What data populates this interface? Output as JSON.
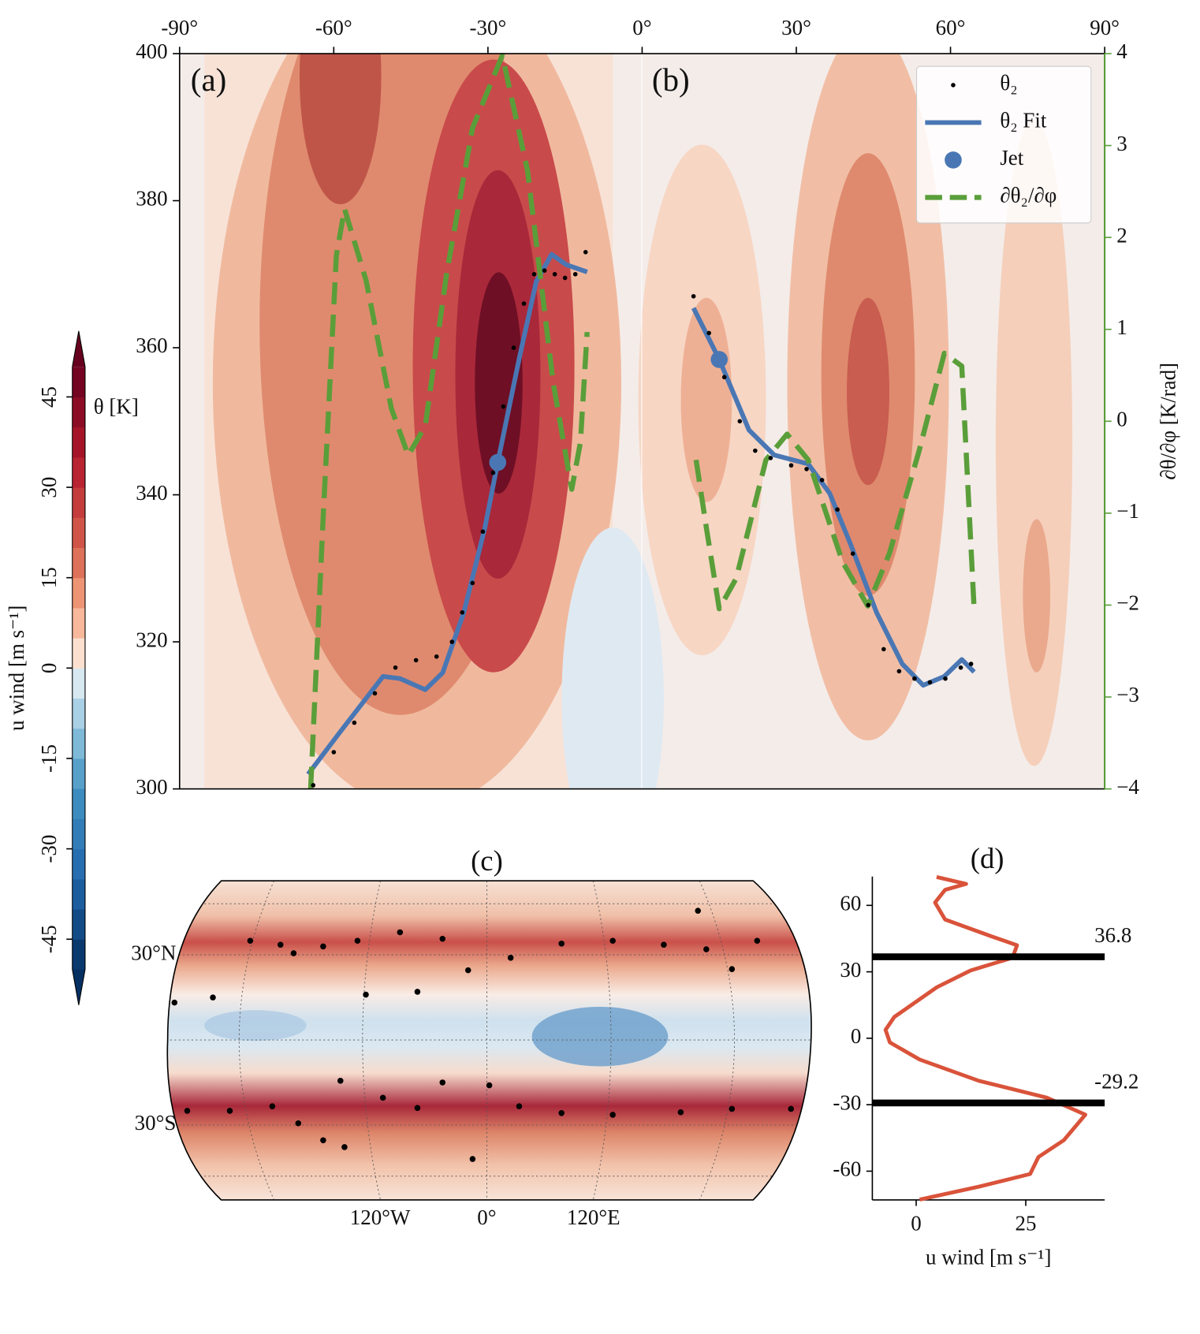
{
  "chart_data": [
    {
      "type": "line",
      "labels": [
        "(a)",
        "(b)"
      ],
      "ylabel": "θ [K]",
      "y2label": "∂θ/∂φ [K/rad]",
      "xlim": [
        -90,
        90
      ],
      "xticks": [
        {
          "value": -90,
          "label": "-90°"
        },
        {
          "value": -60,
          "label": "-60°"
        },
        {
          "value": -30,
          "label": "-30°"
        },
        {
          "value": 0,
          "label": "0°"
        },
        {
          "value": 30,
          "label": "30°"
        },
        {
          "value": 60,
          "label": "60°"
        },
        {
          "value": 90,
          "label": "90°"
        }
      ],
      "ylim": [
        300,
        400
      ],
      "yticks": [
        300,
        320,
        340,
        360,
        380,
        400
      ],
      "y2lim": [
        -4,
        4
      ],
      "y2ticks": [
        {
          "value": -4,
          "label": "−4"
        },
        {
          "value": -3,
          "label": "−3"
        },
        {
          "value": -2,
          "label": "−2"
        },
        {
          "value": -1,
          "label": "−1"
        },
        0,
        1,
        2,
        3,
        4
      ],
      "legend": "upper right",
      "series": [
        {
          "name": "θ₂",
          "color": "#000000",
          "kind": "scatter",
          "x": [
            -64,
            -60,
            -56,
            -52,
            -48,
            -44,
            -40,
            -37,
            -35,
            -33,
            -31,
            -29,
            -27,
            -25,
            -23,
            -21,
            -19,
            -17,
            -15,
            -13,
            -11,
            10,
            13,
            16,
            19,
            22,
            25,
            29,
            32,
            35,
            38,
            41,
            44,
            47,
            50,
            53,
            56,
            59,
            62,
            64
          ],
          "values": [
            300.5,
            305,
            309,
            313,
            316.5,
            317.5,
            318,
            320,
            324,
            328,
            335,
            343,
            352,
            360,
            366,
            370,
            370.5,
            370,
            369.5,
            370,
            373,
            367,
            362,
            356,
            350,
            346,
            345,
            344,
            343.5,
            342,
            338,
            332,
            325,
            319,
            316,
            315,
            314.5,
            315,
            316.5,
            317
          ]
        },
        {
          "name": "θ₂ Fit",
          "color": "#4a77b4",
          "kind": "line",
          "x": [
            -65,
            -58.7,
            -50.4,
            -47.1,
            -42.2,
            -38.8,
            -34.7,
            -30.6,
            -28.1,
            -23.9,
            -20.6,
            -17.6,
            -14.8,
            -10.7,
            null,
            10,
            15,
            20.8,
            25.7,
            32.3,
            36.5,
            40.6,
            45.6,
            50.6,
            54.7,
            58.8,
            62.2,
            64.6
          ],
          "values": [
            302,
            307.8,
            315.3,
            315,
            313.5,
            315.8,
            324,
            335.5,
            344.4,
            358.6,
            369,
            372.7,
            371.3,
            370.3,
            null,
            365.4,
            358.4,
            348.8,
            345.4,
            344.2,
            340.2,
            333.2,
            324,
            317,
            314.1,
            315.3,
            317.6,
            315.9
          ]
        },
        {
          "name": "Jet",
          "color": "#4a77b4",
          "kind": "dot",
          "x": [
            -28.1,
            15
          ],
          "values": [
            344.4,
            358.4
          ]
        },
        {
          "name": "∂θ₂/∂φ",
          "color": "#5a9e3a",
          "kind": "dashed",
          "axis": "y2",
          "x": [
            -64.5,
            -62,
            -59.5,
            -57.9,
            -53.7,
            -48.8,
            -45.5,
            -42.2,
            -38,
            -33,
            -27.2,
            -22.3,
            -17.3,
            -13.7,
            -12,
            -10.7,
            null,
            10.5,
            12.5,
            15,
            18.3,
            24.1,
            28.2,
            32.3,
            39,
            43.9,
            48.1,
            53.9,
            58.8,
            62.2,
            64.6
          ],
          "values": [
            -4,
            -0.97,
            1.8,
            2.31,
            1.53,
            0.14,
            -0.37,
            -0.05,
            1.62,
            3.19,
            3.98,
            2.73,
            0.42,
            -0.74,
            -0.23,
            0.97,
            null,
            -0.42,
            -1.16,
            -2.04,
            -1.71,
            -0.42,
            -0.14,
            -0.42,
            -1.53,
            -2.01,
            -1.44,
            -0.32,
            0.74,
            0.6,
            -2.04
          ]
        }
      ]
    },
    {
      "type": "colorbar",
      "label": "u wind [m s⁻¹]",
      "ylim": [
        -50,
        50
      ],
      "yticks": [
        45,
        30,
        15,
        0,
        -15,
        -30,
        -45
      ],
      "colormap": "RdBu_r"
    },
    {
      "type": "map",
      "title": "(c)",
      "color": "#000000",
      "xticks": [
        {
          "value": -120,
          "label": "120°W"
        },
        {
          "value": 0,
          "label": "0°"
        },
        {
          "value": 120,
          "label": "120°E"
        }
      ],
      "yticks": [
        {
          "value": 30,
          "label": "30°N"
        },
        {
          "value": -30,
          "label": "30°S"
        }
      ],
      "x": [
        -175.6,
        -154,
        -133,
        -116,
        -108.6,
        -92,
        -72.7,
        -48.8,
        -24.9,
        -10.5,
        13.4,
        42,
        70.8,
        99.5,
        123.4,
        137.8,
        152,
        -68,
        -39,
        118.7,
        -168.4,
        -144.5,
        -120.6,
        -106,
        -92,
        -80,
        -82.3,
        -58.4,
        -39,
        -24.9,
        1.4,
        18.2,
        42,
        70.8,
        109,
        137.8,
        171,
        -8
      ],
      "values": [
        13.2,
        15,
        35,
        33.6,
        30.6,
        33,
        35,
        38,
        35.7,
        24.6,
        29,
        34,
        35,
        33.6,
        32,
        25,
        35,
        16,
        17,
        45.6,
        -25,
        -25,
        -23.4,
        -29.4,
        -35.4,
        -37.8,
        -14.4,
        -20.4,
        -24,
        -15,
        -16,
        -23.4,
        -25.8,
        -26.4,
        -25.5,
        -24.3,
        -24.3,
        -42
      ]
    },
    {
      "type": "line",
      "title": "(d)",
      "xlabel": "u wind [m s⁻¹]",
      "color": "#d9533a",
      "xlim": [
        -10,
        43
      ],
      "xticks": [
        0,
        25
      ],
      "ylim": [
        -73,
        73
      ],
      "yticks": [
        -60,
        -30,
        0,
        30,
        60
      ],
      "values": [
        4.65,
        11.4,
        6.6,
        4.3,
        6.6,
        17.2,
        23,
        22,
        12.4,
        4.7,
        -5,
        -7,
        -6,
        0.8,
        14.3,
        29.8,
        38.6,
        33.7,
        27.9,
        26,
        14.3,
        0.8
      ],
      "y": [
        72.8,
        69.7,
        67,
        61.3,
        53.6,
        46,
        42,
        36.4,
        30.6,
        23,
        9.6,
        3.8,
        -1.9,
        -9.6,
        -19.2,
        -26.8,
        -34.5,
        -46,
        -53.6,
        -61.3,
        -67,
        -72.8
      ],
      "hlines": [
        36.8,
        -29.2
      ],
      "hline_color": "#000000"
    }
  ]
}
